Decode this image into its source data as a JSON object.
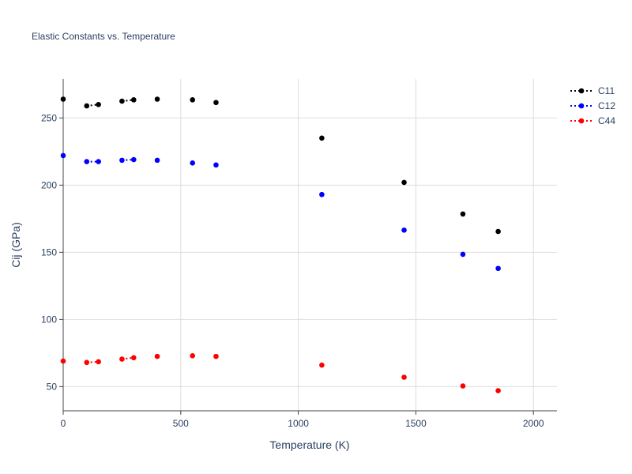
{
  "chart_data": {
    "type": "scatter",
    "title": "Elastic Constants vs. Temperature",
    "xlabel": "Temperature (K)",
    "ylabel": "Cij (GPa)",
    "xlim": [
      0,
      2100
    ],
    "ylim": [
      32,
      279
    ],
    "x_ticks": [
      0,
      500,
      1000,
      1500,
      2000
    ],
    "y_ticks": [
      50,
      100,
      150,
      200,
      250
    ],
    "grid": true,
    "legend_position": "top-right",
    "x": [
      0,
      100,
      150,
      250,
      300,
      400,
      550,
      650,
      1100,
      1450,
      1700,
      1850
    ],
    "series": [
      {
        "name": "C11",
        "color": "#000000",
        "values": [
          264,
          259,
          260,
          262.5,
          263.5,
          264,
          263.5,
          261.5,
          235,
          202,
          178.5,
          165.5
        ]
      },
      {
        "name": "C12",
        "color": "#0000ff",
        "values": [
          222,
          217.5,
          217.5,
          218.5,
          219,
          218.5,
          216.5,
          215,
          193,
          166.5,
          148.5,
          138
        ]
      },
      {
        "name": "C44",
        "color": "#ff0000",
        "values": [
          69,
          68,
          68.5,
          70.5,
          71.5,
          72.5,
          73,
          72.5,
          66,
          57,
          50.5,
          47
        ]
      }
    ]
  }
}
